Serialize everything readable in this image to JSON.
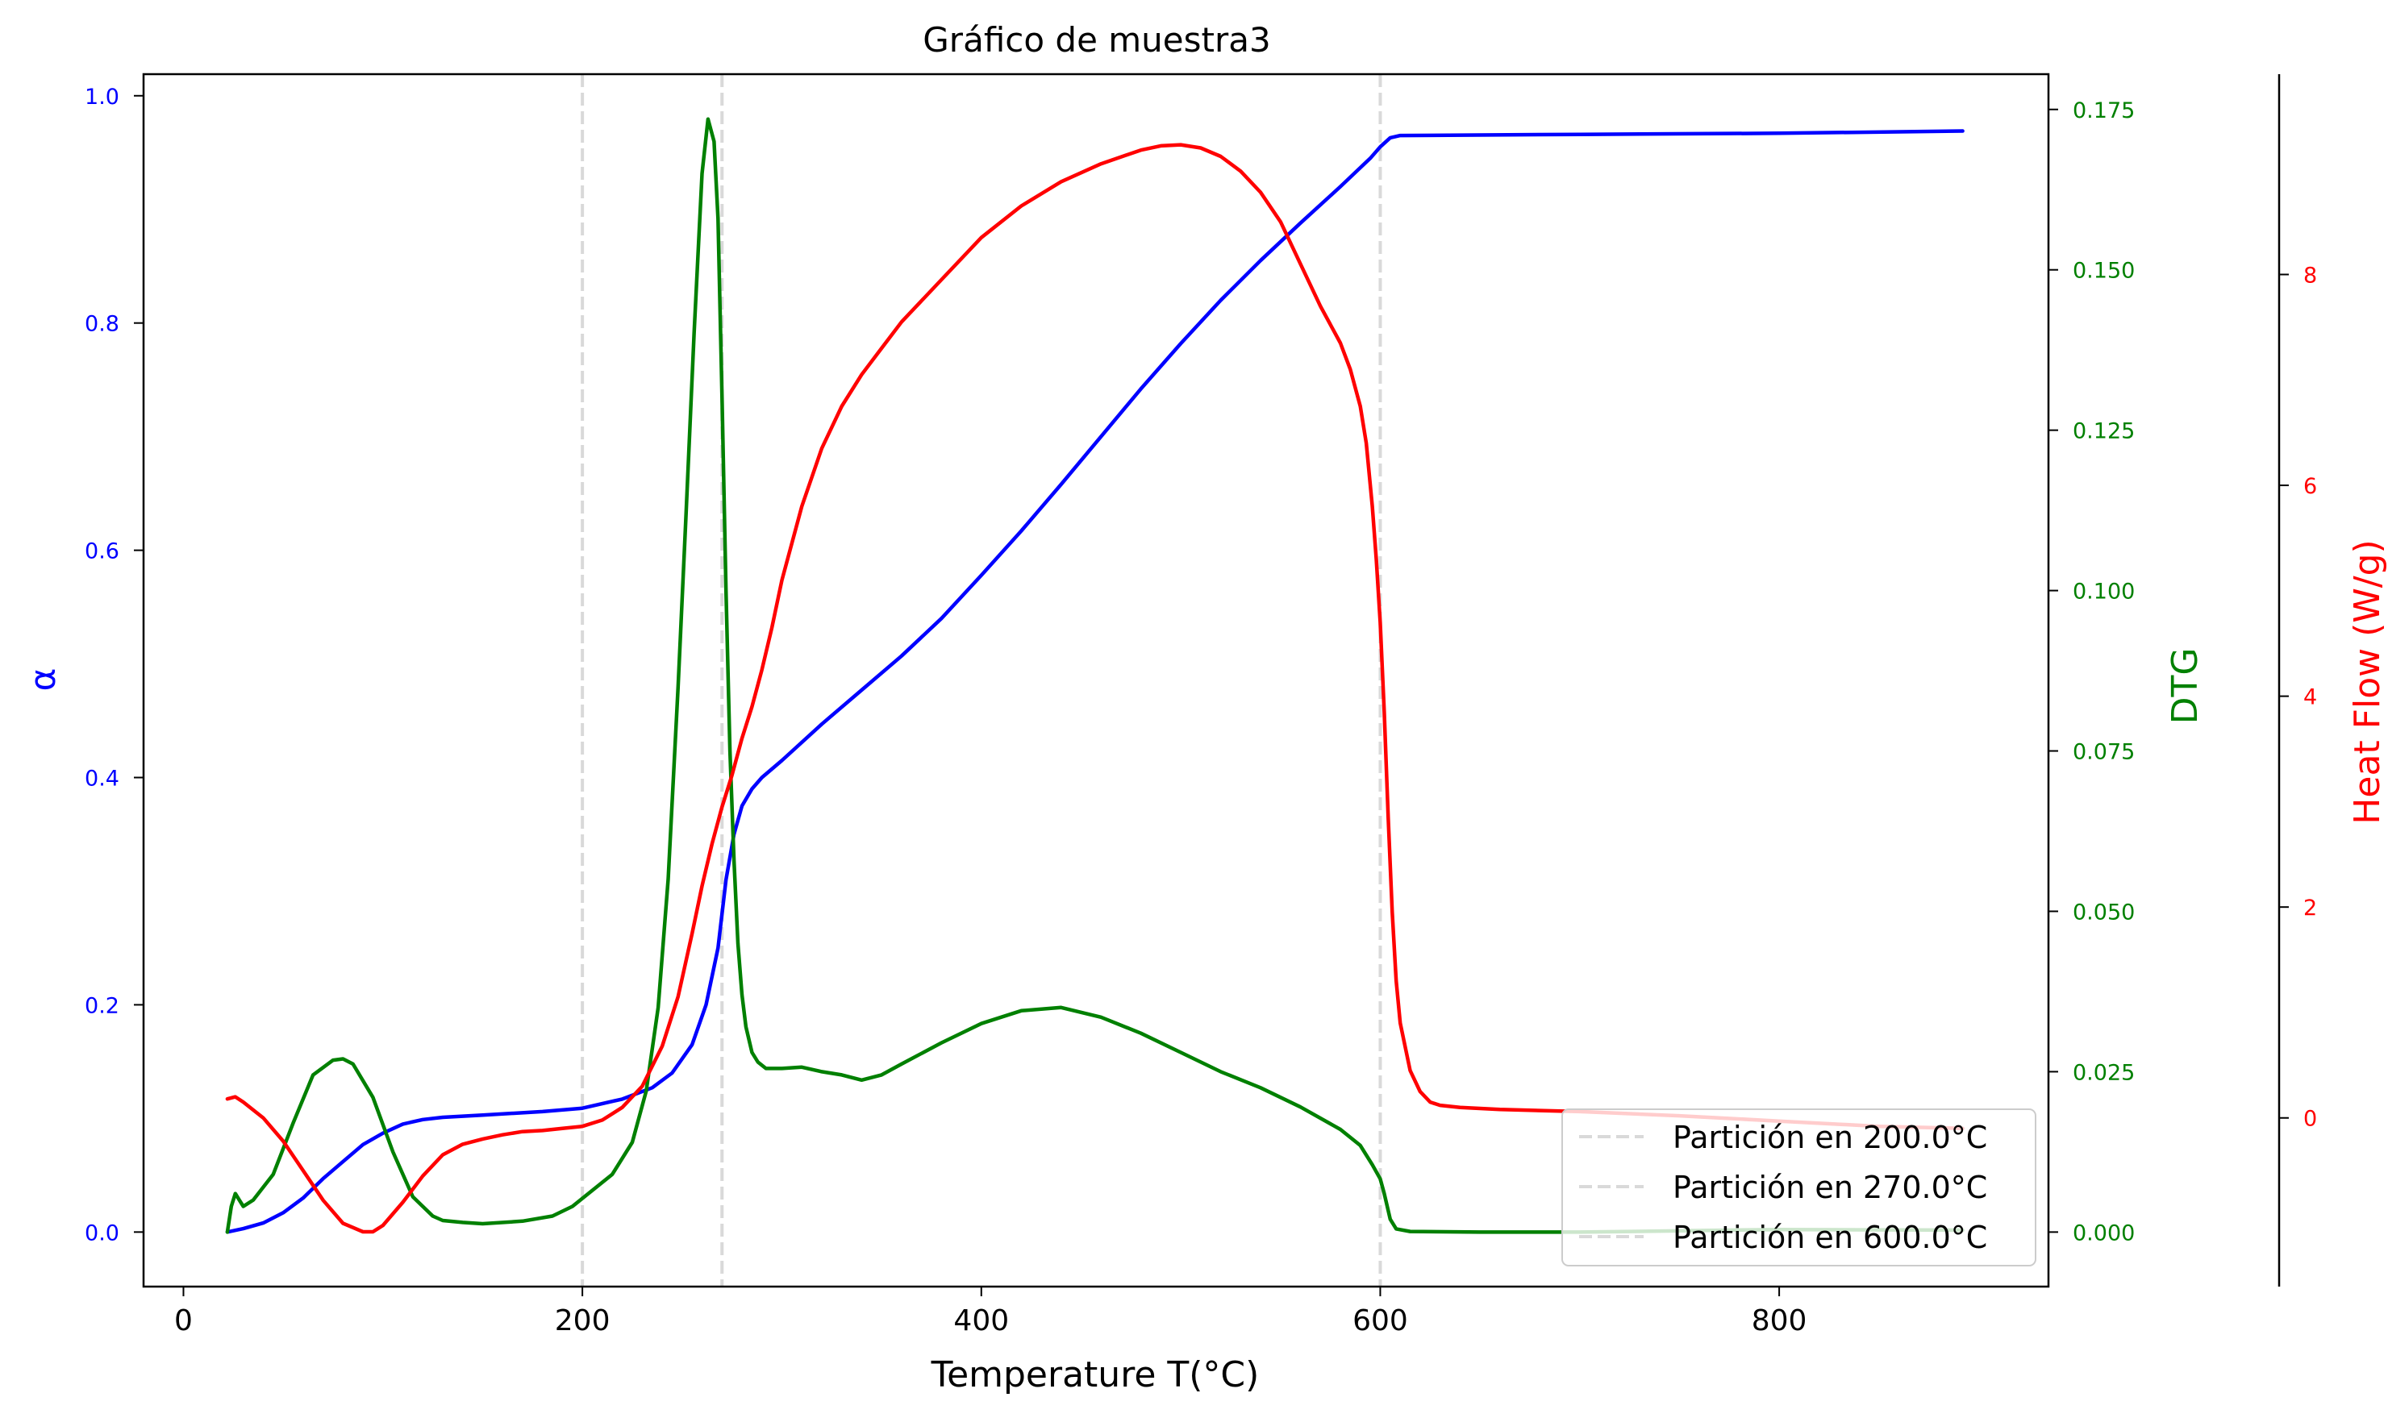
{
  "chart_data": {
    "type": "line",
    "title": "Gráfico de muestra3",
    "xlabel": "Temperature T(°C)",
    "xlim": [
      -20,
      935
    ],
    "xticks": [
      0,
      200,
      400,
      600,
      800
    ],
    "axes": {
      "alpha": {
        "label": "α",
        "color": "#0000ff",
        "ylim": [
          -0.048,
          1.019
        ],
        "ticks": [
          0.0,
          0.2,
          0.4,
          0.6,
          0.8,
          1.0
        ],
        "tick_labels": [
          "0.0",
          "0.2",
          "0.4",
          "0.6",
          "0.8",
          "1.0"
        ]
      },
      "dtg": {
        "label": "DTG",
        "color": "#008000",
        "ylim": [
          -0.0085,
          0.1805
        ],
        "ticks": [
          0.0,
          0.025,
          0.05,
          0.075,
          0.1,
          0.125,
          0.15,
          0.175
        ],
        "tick_labels": [
          "0.000",
          "0.025",
          "0.050",
          "0.075",
          "0.100",
          "0.125",
          "0.150",
          "0.175"
        ]
      },
      "heat": {
        "label": "Heat Flow (W/g)",
        "color": "#ff0000",
        "ylim": [
          -1.6,
          9.9
        ],
        "ticks": [
          0,
          2,
          4,
          6,
          8
        ],
        "tick_labels": [
          "0",
          "2",
          "4",
          "6",
          "8"
        ]
      }
    },
    "partitions": [
      200,
      270,
      600
    ],
    "legend": {
      "position": "lower-right",
      "entries": [
        "Partición en 200.0°C",
        "Partición en 270.0°C",
        "Partición en 600.0°C"
      ]
    },
    "series": [
      {
        "axis": "alpha",
        "color": "#0000ff",
        "x": [
          22,
          30,
          40,
          50,
          60,
          70,
          80,
          90,
          100,
          110,
          120,
          130,
          150,
          180,
          200,
          220,
          235,
          245,
          255,
          262,
          268,
          272,
          276,
          280,
          285,
          290,
          300,
          320,
          340,
          360,
          380,
          400,
          420,
          440,
          460,
          480,
          500,
          520,
          540,
          560,
          580,
          595,
          600,
          605,
          610,
          700,
          800,
          892
        ],
        "y": [
          0.0,
          0.003,
          0.008,
          0.017,
          0.03,
          0.047,
          0.062,
          0.077,
          0.087,
          0.095,
          0.099,
          0.101,
          0.103,
          0.106,
          0.109,
          0.117,
          0.127,
          0.14,
          0.165,
          0.2,
          0.25,
          0.31,
          0.35,
          0.375,
          0.39,
          0.4,
          0.415,
          0.447,
          0.477,
          0.507,
          0.54,
          0.578,
          0.617,
          0.658,
          0.7,
          0.742,
          0.782,
          0.82,
          0.855,
          0.888,
          0.92,
          0.945,
          0.955,
          0.963,
          0.965,
          0.966,
          0.967,
          0.969
        ]
      },
      {
        "axis": "dtg",
        "color": "#008000",
        "x": [
          22,
          24,
          26,
          28,
          30,
          35,
          45,
          55,
          65,
          75,
          80,
          85,
          95,
          105,
          115,
          125,
          130,
          140,
          150,
          170,
          185,
          195,
          205,
          215,
          225,
          232,
          238,
          243,
          248,
          252,
          256,
          260,
          263,
          266,
          268,
          270,
          272,
          274,
          276,
          278,
          280,
          282,
          285,
          288,
          292,
          296,
          300,
          310,
          320,
          330,
          340,
          350,
          360,
          380,
          400,
          420,
          440,
          460,
          480,
          500,
          520,
          540,
          560,
          580,
          590,
          596,
          600,
          602,
          605,
          608,
          615,
          650,
          700,
          800,
          892
        ],
        "y": [
          0.0,
          0.004,
          0.006,
          0.005,
          0.004,
          0.005,
          0.009,
          0.017,
          0.0245,
          0.0268,
          0.027,
          0.0262,
          0.021,
          0.0125,
          0.0055,
          0.0025,
          0.0018,
          0.0015,
          0.0013,
          0.0017,
          0.0025,
          0.004,
          0.0065,
          0.009,
          0.014,
          0.022,
          0.035,
          0.055,
          0.085,
          0.112,
          0.14,
          0.165,
          0.1735,
          0.17,
          0.158,
          0.13,
          0.1,
          0.075,
          0.058,
          0.045,
          0.037,
          0.032,
          0.028,
          0.0265,
          0.0255,
          0.0255,
          0.0255,
          0.0257,
          0.025,
          0.0245,
          0.0237,
          0.0245,
          0.0262,
          0.0295,
          0.0325,
          0.0345,
          0.035,
          0.0335,
          0.031,
          0.028,
          0.025,
          0.0225,
          0.0195,
          0.016,
          0.0135,
          0.0105,
          0.0083,
          0.006,
          0.002,
          0.0005,
          0.0001,
          0.0,
          0.0,
          0.0004,
          0.0003
        ]
      },
      {
        "axis": "heat",
        "color": "#ff0000",
        "x": [
          22,
          26,
          30,
          40,
          50,
          60,
          70,
          80,
          90,
          95,
          100,
          110,
          120,
          130,
          140,
          150,
          160,
          170,
          180,
          190,
          200,
          210,
          220,
          230,
          240,
          248,
          255,
          260,
          265,
          270,
          275,
          280,
          285,
          290,
          295,
          300,
          310,
          320,
          330,
          340,
          350,
          360,
          380,
          400,
          420,
          440,
          460,
          480,
          490,
          500,
          510,
          520,
          530,
          540,
          550,
          560,
          570,
          580,
          585,
          590,
          593,
          596,
          598,
          600,
          602,
          604,
          606,
          608,
          610,
          615,
          620,
          625,
          630,
          640,
          660,
          700,
          750,
          800,
          850,
          892
        ],
        "y": [
          0.18,
          0.2,
          0.15,
          0.0,
          -0.22,
          -0.5,
          -0.78,
          -1.0,
          -1.08,
          -1.08,
          -1.02,
          -0.8,
          -0.55,
          -0.35,
          -0.25,
          -0.2,
          -0.16,
          -0.13,
          -0.12,
          -0.1,
          -0.08,
          -0.02,
          0.1,
          0.3,
          0.68,
          1.15,
          1.75,
          2.2,
          2.6,
          2.95,
          3.25,
          3.6,
          3.9,
          4.25,
          4.65,
          5.1,
          5.8,
          6.35,
          6.75,
          7.05,
          7.3,
          7.55,
          7.95,
          8.35,
          8.65,
          8.88,
          9.05,
          9.18,
          9.22,
          9.23,
          9.2,
          9.12,
          8.98,
          8.78,
          8.5,
          8.1,
          7.7,
          7.35,
          7.1,
          6.75,
          6.4,
          5.8,
          5.3,
          4.7,
          3.85,
          2.85,
          1.95,
          1.3,
          0.9,
          0.45,
          0.25,
          0.15,
          0.12,
          0.1,
          0.08,
          0.06,
          0.02,
          -0.03,
          -0.08,
          -0.1
        ]
      }
    ]
  }
}
